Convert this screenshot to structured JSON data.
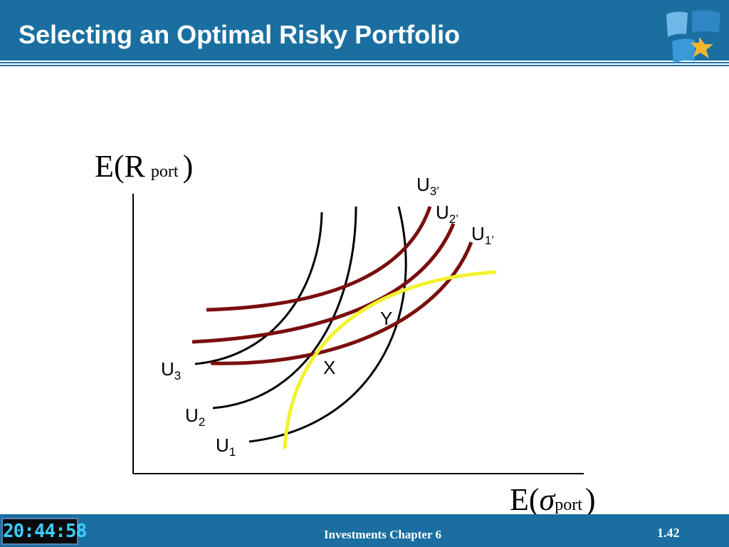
{
  "slide": {
    "title": "Selecting an Optimal Risky Portfolio",
    "footer_text": "Investments  Chapter 6",
    "slide_number": "1.42",
    "clock": "20:44:58"
  },
  "diagram": {
    "y_axis": {
      "main": "E(R",
      "sub": "port",
      "close": ")"
    },
    "x_axis": {
      "main": "E(",
      "symbol": "σ",
      "sub": "port",
      "close": ")"
    },
    "curve_labels": [
      {
        "id": "u3",
        "main": "U",
        "sub": "3"
      },
      {
        "id": "u2",
        "main": "U",
        "sub": "2"
      },
      {
        "id": "u1",
        "main": "U",
        "sub": "1"
      },
      {
        "id": "u3p",
        "main": "U",
        "sub": "3’"
      },
      {
        "id": "u2p",
        "main": "U",
        "sub": "2’"
      },
      {
        "id": "u1p",
        "main": "U",
        "sub": "1’"
      }
    ],
    "points": {
      "x": "X",
      "y": "Y"
    },
    "colors": {
      "header": "#1a6fa0",
      "black_curves": "#000000",
      "red_curves": "#7a0e0e",
      "frontier": "#f2f230"
    }
  }
}
